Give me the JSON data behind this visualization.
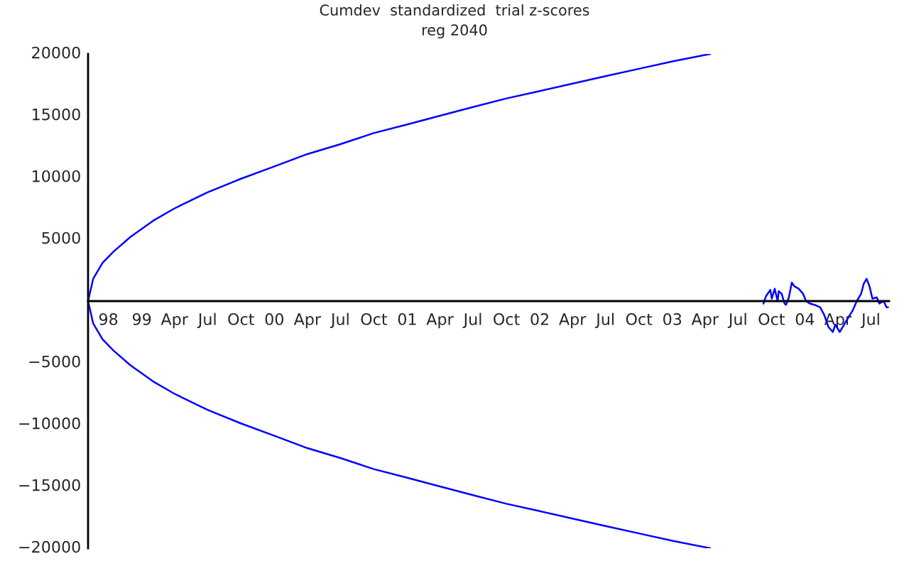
{
  "chart_data": {
    "type": "line",
    "title": "Cumdev  standardized  trial z-scores",
    "subtitle": "reg 2040",
    "xlim": [
      "1998-08-06",
      "2004-08-20"
    ],
    "xticks": [
      {
        "value": "1998-10-01",
        "label": "98"
      },
      {
        "value": "1999-01-01",
        "label": "99"
      },
      {
        "value": "1999-04-01",
        "label": "Apr"
      },
      {
        "value": "1999-07-01",
        "label": "Jul"
      },
      {
        "value": "1999-10-01",
        "label": "Oct"
      },
      {
        "value": "2000-01-01",
        "label": "00"
      },
      {
        "value": "2000-04-01",
        "label": "Apr"
      },
      {
        "value": "2000-07-01",
        "label": "Jul"
      },
      {
        "value": "2000-10-01",
        "label": "Oct"
      },
      {
        "value": "2001-01-01",
        "label": "01"
      },
      {
        "value": "2001-04-01",
        "label": "Apr"
      },
      {
        "value": "2001-07-01",
        "label": "Jul"
      },
      {
        "value": "2001-10-01",
        "label": "Oct"
      },
      {
        "value": "2002-01-01",
        "label": "02"
      },
      {
        "value": "2002-04-01",
        "label": "Apr"
      },
      {
        "value": "2002-07-01",
        "label": "Jul"
      },
      {
        "value": "2002-10-01",
        "label": "Oct"
      },
      {
        "value": "2003-01-01",
        "label": "03"
      },
      {
        "value": "2003-04-01",
        "label": "Apr"
      },
      {
        "value": "2003-07-01",
        "label": "Jul"
      },
      {
        "value": "2003-10-01",
        "label": "Oct"
      },
      {
        "value": "2004-01-01",
        "label": "04"
      },
      {
        "value": "2004-04-01",
        "label": "Apr"
      },
      {
        "value": "2004-07-01",
        "label": "Jul"
      }
    ],
    "ylim": [
      -20000,
      20000
    ],
    "yticks": [
      -20000,
      -15000,
      -10000,
      -5000,
      {
        "value": 0,
        "label": null
      },
      5000,
      10000,
      15000,
      20000
    ],
    "grid": false,
    "legend": false,
    "marker": "none",
    "line_style": "solid",
    "series": [
      {
        "color": "#0000ff",
        "x": [
          "2003-04-15",
          "2003-01-01",
          "2002-10-01",
          "2002-07-01",
          "2002-04-01",
          "2002-01-01",
          "2001-10-01",
          "2001-07-01",
          "2001-04-01",
          "2001-01-01",
          "2000-10-01",
          "2000-07-01",
          "2000-04-01",
          "2000-01-01",
          "1999-10-01",
          "1999-07-01",
          "1999-04-01",
          "1999-02-01",
          "1998-12-01",
          "1998-10-15",
          "1998-09-15",
          "1998-08-20",
          "1998-08-06",
          "1998-08-20",
          "1998-09-15",
          "1998-10-15",
          "1998-12-01",
          "1999-02-01",
          "1999-04-01",
          "1999-07-01",
          "1999-10-01",
          "2000-01-01",
          "2000-04-01",
          "2000-07-01",
          "2000-10-01",
          "2001-01-01",
          "2001-04-01",
          "2001-07-01",
          "2001-10-01",
          "2002-01-01",
          "2002-04-01",
          "2002-07-01",
          "2002-10-01",
          "2003-01-01",
          "2003-04-15"
        ],
        "values": [
          -20000,
          -19400,
          -18800,
          -18200,
          -17600,
          -17000,
          -16400,
          -15700,
          -15000,
          -14300,
          -13600,
          -12700,
          -11900,
          -10900,
          -9900,
          -8800,
          -7500,
          -6500,
          -5200,
          -4000,
          -3100,
          -1800,
          0,
          1800,
          3100,
          4000,
          5200,
          6500,
          7500,
          8800,
          9900,
          10900,
          11900,
          12700,
          13600,
          14300,
          15000,
          15700,
          16400,
          17000,
          17600,
          18200,
          18800,
          19400,
          20000
        ]
      },
      {
        "color": "#0000ff",
        "x": [
          "2003-09-09",
          "2003-09-16",
          "2003-09-28",
          "2003-10-02",
          "2003-10-10",
          "2003-10-18",
          "2003-10-21",
          "2003-10-29",
          "2003-11-06",
          "2003-11-10",
          "2003-11-18",
          "2003-11-26",
          "2003-12-03",
          "2003-12-15",
          "2003-12-27",
          "2004-01-04",
          "2004-01-15",
          "2004-01-27",
          "2004-02-12",
          "2004-02-23",
          "2004-03-06",
          "2004-03-18",
          "2004-03-25",
          "2004-04-06",
          "2004-04-14",
          "2004-04-30",
          "2004-05-11",
          "2004-05-23",
          "2004-06-04",
          "2004-06-11",
          "2004-06-19",
          "2004-06-27",
          "2004-07-05",
          "2004-07-17",
          "2004-07-24",
          "2004-08-05",
          "2004-08-13",
          "2004-08-17"
        ],
        "values": [
          -200,
          400,
          900,
          200,
          1000,
          0,
          800,
          600,
          -200,
          -300,
          300,
          1500,
          1200,
          1000,
          600,
          0,
          -200,
          -300,
          -500,
          -1100,
          -2100,
          -2500,
          -1900,
          -2500,
          -2100,
          -1300,
          -800,
          0,
          600,
          1400,
          1800,
          1200,
          200,
          300,
          -200,
          0,
          -500,
          -500
        ]
      }
    ]
  }
}
